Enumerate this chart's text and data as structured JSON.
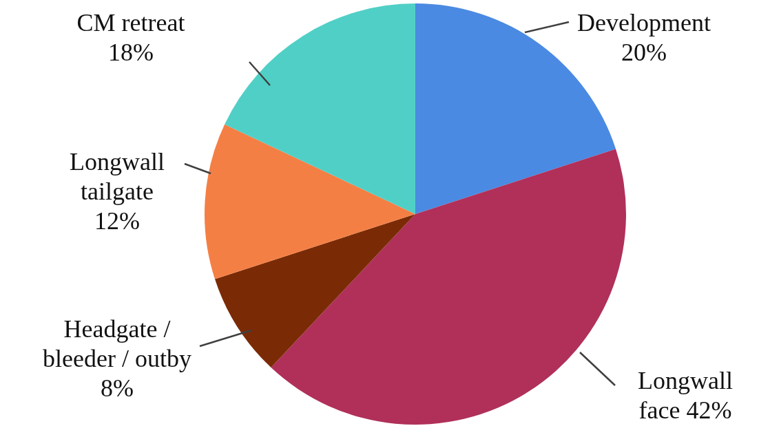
{
  "chart_data": {
    "type": "pie",
    "categories": [
      "Development",
      "Longwall\nface",
      "Headgate /\nbleeder / outby",
      "Longwall\ntailgate",
      "CM retreat"
    ],
    "values": [
      20,
      42,
      8,
      12,
      18
    ],
    "value_labels": [
      "20%",
      "42%",
      "8%",
      "12%",
      "18%"
    ],
    "colors": [
      "#4a8ae2",
      "#b0305a",
      "#7a2b06",
      "#f47f45",
      "#50cfc6"
    ]
  }
}
